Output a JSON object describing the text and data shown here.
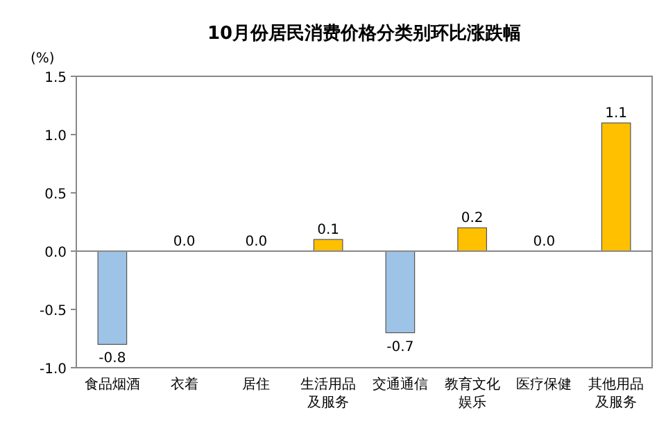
{
  "chart_data": {
    "type": "bar",
    "title": "10月份居民消费价格分类别环比涨跌幅",
    "ylabel": "(%)",
    "categories": [
      "食品烟酒",
      "衣着",
      "居住",
      "生活用品及服务",
      "交通通信",
      "教育文化娱乐",
      "医疗保健",
      "其他用品及服务"
    ],
    "values": [
      -0.8,
      0.0,
      0.0,
      0.1,
      -0.7,
      0.2,
      0.0,
      1.1
    ],
    "colors": [
      "#9dc3e6",
      "#ffc000",
      "#ffc000",
      "#ffc000",
      "#9dc3e6",
      "#ffc000",
      "#ffc000",
      "#ffc000"
    ],
    "value_labels": [
      "-0.8",
      "0.0",
      "0.0",
      "0.1",
      "-0.7",
      "0.2",
      "0.0",
      "1.1"
    ],
    "ylim": [
      -1.0,
      1.5
    ],
    "yticks": [
      {
        "value": 1.5,
        "label": "1.5"
      },
      {
        "value": 1.0,
        "label": "1.0"
      },
      {
        "value": 0.5,
        "label": "0.5"
      },
      {
        "value": 0.0,
        "label": "0.0"
      },
      {
        "value": -0.5,
        "label": "-0.5"
      },
      {
        "value": -1.0,
        "label": "-1.0"
      }
    ],
    "stacked": false
  }
}
